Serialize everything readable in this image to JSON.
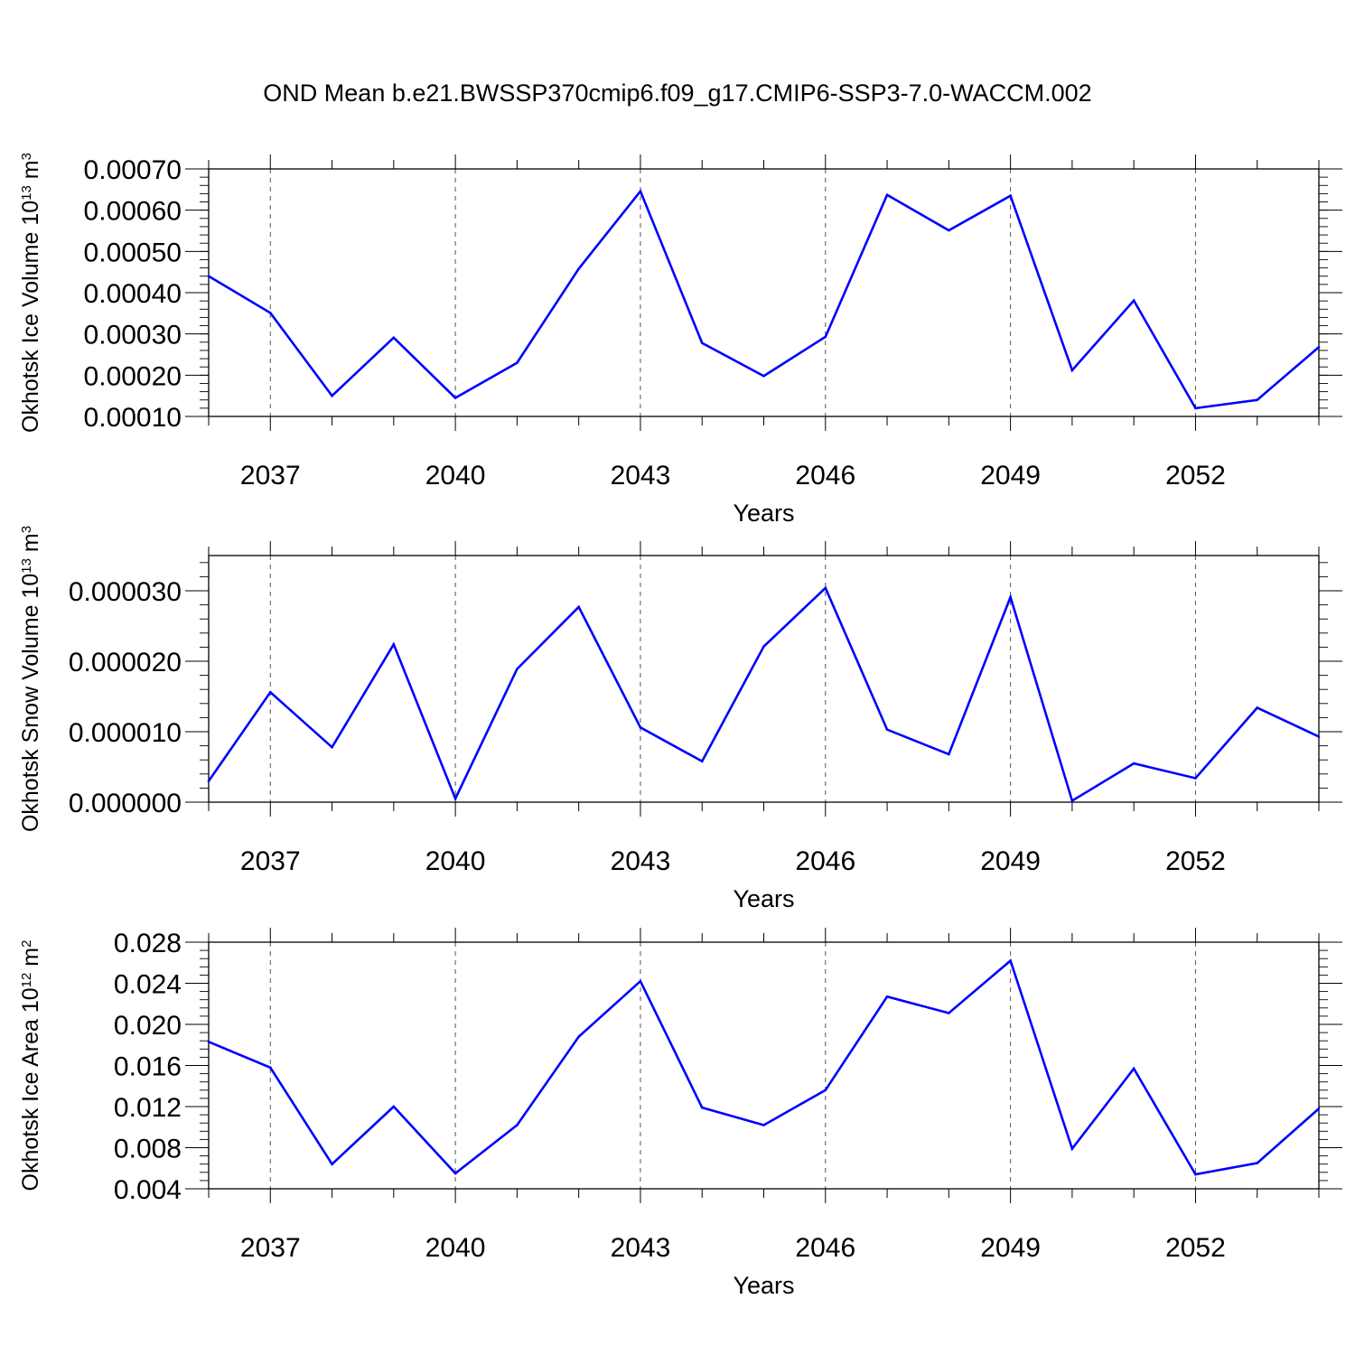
{
  "figure": {
    "title": "OND Mean b.e21.BWSSP370cmip6.f09_g17.CMIP6-SSP3-7.0-WACCM.002",
    "line_color": "#0000ff"
  },
  "chart_data": [
    {
      "type": "line",
      "xlabel": "Years",
      "ylabel": {
        "text": "Okhotsk Ice Volume 10",
        "exp": "13",
        "unit": " m",
        "unit_exp": "3"
      },
      "xlim": [
        2036,
        2054
      ],
      "ylim": [
        0.0001,
        0.0007
      ],
      "x_major_ticks": [
        2037,
        2040,
        2043,
        2046,
        2049,
        2052
      ],
      "y_ticks": [
        {
          "value": 0.0001,
          "label": "0.00010"
        },
        {
          "value": 0.0002,
          "label": "0.00020"
        },
        {
          "value": 0.0003,
          "label": "0.00030"
        },
        {
          "value": 0.0004,
          "label": "0.00040"
        },
        {
          "value": 0.0005,
          "label": "0.00050"
        },
        {
          "value": 0.0006,
          "label": "0.00060"
        },
        {
          "value": 0.0007,
          "label": "0.00070"
        }
      ],
      "grid": "vertical-dashed-at-major-ticks",
      "x": [
        2036,
        2037,
        2038,
        2039,
        2040,
        2041,
        2042,
        2043,
        2044,
        2045,
        2046,
        2047,
        2048,
        2049,
        2050,
        2051,
        2052,
        2053,
        2054
      ],
      "y": [
        0.00044,
        0.000351,
        0.00015,
        0.000291,
        0.000145,
        0.00023,
        0.000458,
        0.000646,
        0.000278,
        0.000198,
        0.000293,
        0.000637,
        0.000551,
        0.000635,
        0.000212,
        0.000381,
        0.00012,
        0.00014,
        0.000268
      ]
    },
    {
      "type": "line",
      "xlabel": "Years",
      "ylabel": {
        "text": "Okhotsk Snow Volume 10",
        "exp": "13",
        "unit": " m",
        "unit_exp": "3"
      },
      "xlim": [
        2036,
        2054
      ],
      "ylim": [
        0.0,
        3.5e-05
      ],
      "x_major_ticks": [
        2037,
        2040,
        2043,
        2046,
        2049,
        2052
      ],
      "y_ticks": [
        {
          "value": 0.0,
          "label": "0.000000"
        },
        {
          "value": 1e-05,
          "label": "0.000010"
        },
        {
          "value": 2e-05,
          "label": "0.000020"
        },
        {
          "value": 3e-05,
          "label": "0.000030"
        }
      ],
      "grid": "vertical-dashed-at-major-ticks",
      "x": [
        2036,
        2037,
        2038,
        2039,
        2040,
        2041,
        2042,
        2043,
        2044,
        2045,
        2046,
        2047,
        2048,
        2049,
        2050,
        2051,
        2052,
        2053,
        2054
      ],
      "y": [
        3e-06,
        1.56e-05,
        7.8e-06,
        2.24e-05,
        5e-07,
        1.89e-05,
        2.77e-05,
        1.06e-05,
        5.8e-06,
        2.21e-05,
        3.04e-05,
        1.03e-05,
        6.8e-06,
        2.91e-05,
        2e-07,
        5.5e-06,
        3.4e-06,
        1.34e-05,
        9.3e-06
      ]
    },
    {
      "type": "line",
      "xlabel": "Years",
      "ylabel": {
        "text": "Okhotsk Ice Area 10",
        "exp": "12",
        "unit": " m",
        "unit_exp": "2"
      },
      "xlim": [
        2036,
        2054
      ],
      "ylim": [
        0.004,
        0.028
      ],
      "x_major_ticks": [
        2037,
        2040,
        2043,
        2046,
        2049,
        2052
      ],
      "y_ticks": [
        {
          "value": 0.004,
          "label": "0.004"
        },
        {
          "value": 0.008,
          "label": "0.008"
        },
        {
          "value": 0.012,
          "label": "0.012"
        },
        {
          "value": 0.016,
          "label": "0.016"
        },
        {
          "value": 0.02,
          "label": "0.020"
        },
        {
          "value": 0.024,
          "label": "0.024"
        },
        {
          "value": 0.028,
          "label": "0.028"
        }
      ],
      "grid": "vertical-dashed-at-major-ticks",
      "x": [
        2036,
        2037,
        2038,
        2039,
        2040,
        2041,
        2042,
        2043,
        2044,
        2045,
        2046,
        2047,
        2048,
        2049,
        2050,
        2051,
        2052,
        2053,
        2054
      ],
      "y": [
        0.0183,
        0.0158,
        0.0064,
        0.012,
        0.0055,
        0.0102,
        0.0188,
        0.0242,
        0.0119,
        0.0102,
        0.0136,
        0.0227,
        0.0211,
        0.0262,
        0.0079,
        0.0157,
        0.0054,
        0.0065,
        0.0118
      ]
    }
  ]
}
